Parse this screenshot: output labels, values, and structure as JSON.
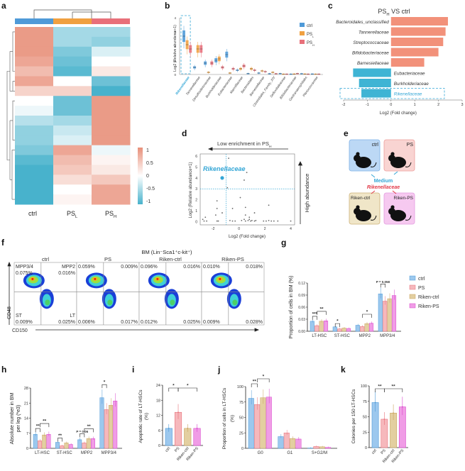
{
  "panel_labels": {
    "a": "a",
    "b": "b",
    "c": "c",
    "d": "d",
    "e": "e",
    "f": "f",
    "g": "g",
    "h": "h",
    "i": "i",
    "j": "j",
    "k": "k"
  },
  "colors": {
    "ctrl": "#4f9ad8",
    "PS_L": "#f0a040",
    "PS_H": "#e8707a",
    "heat_pos": "#e8907a",
    "heat_neg": "#48b2cc",
    "g_ctrl": "#9cc8ee",
    "g_PS": "#f6b8bc",
    "g_riken_ctrl": "#e3cfa0",
    "g_riken_ps": "#f09ce6",
    "highlight": "#33a6d6",
    "c_up": "#f2917a",
    "c_down": "#3fb4d4"
  },
  "chart_data": [
    {
      "id": "a",
      "type": "heatmap",
      "columns": [
        "ctrl",
        "PS_L",
        "PS_H"
      ],
      "column_labels": [
        {
          "main": "ctrl",
          "sub": ""
        },
        {
          "main": "PS",
          "sub": "L"
        },
        {
          "main": "PS",
          "sub": "H"
        }
      ],
      "values": [
        [
          0.9,
          -0.5,
          -0.5
        ],
        [
          0.9,
          -0.5,
          -0.6
        ],
        [
          0.9,
          -0.7,
          -0.2
        ],
        [
          0.8,
          -0.8,
          0.0
        ],
        [
          0.6,
          -0.9,
          0.2
        ],
        [
          0.8,
          0.0,
          -0.8
        ],
        [
          0.4,
          0.4,
          -1.0
        ],
        [
          0.0,
          -0.8,
          0.9
        ],
        [
          -0.1,
          -0.8,
          0.9
        ],
        [
          -0.4,
          -0.5,
          0.9
        ],
        [
          -0.6,
          -0.3,
          0.9
        ],
        [
          -0.6,
          -0.2,
          0.9
        ],
        [
          -0.7,
          0.8,
          -0.1
        ],
        [
          -0.9,
          0.6,
          0.1
        ],
        [
          -1.0,
          0.5,
          0.2
        ],
        [
          -1.0,
          0.3,
          0.5
        ],
        [
          -1.0,
          0.0,
          0.8
        ],
        [
          -1.0,
          0.1,
          0.8
        ]
      ],
      "colorbar": {
        "ticks": [
          "1",
          "0.5",
          "0",
          "-0.5",
          "-1"
        ],
        "range": [
          -1,
          1
        ]
      }
    },
    {
      "id": "b",
      "type": "box",
      "ylabel": "Log2 (Relative abundance+1)",
      "ylim": [
        0,
        4
      ],
      "yticks": [
        "0",
        "1",
        "2",
        "3",
        "4"
      ],
      "legend": [
        {
          "main": "ctrl",
          "sub": ""
        },
        {
          "main": "PS",
          "sub": "L"
        },
        {
          "main": "PS",
          "sub": "H"
        }
      ],
      "legend_placement": "top-right",
      "highlight": "Rikenellaceae",
      "categories": [
        "Rikenellaceae",
        "Tannerellaceae",
        "Desulfovibrionaceae",
        "Burkholderiaceae",
        "Eubacteriaceae",
        "Marinifilaceae",
        "Bacteroidales",
        "Barnesiellaceae",
        "Clostridiales_Family_XIV",
        "Defluviitaleaceae",
        "Bifidobacteriaceae",
        "Gastranaerophilales",
        "Planococcaceae"
      ],
      "medians": {
        "ctrl": [
          2.7,
          0.5,
          0.8,
          1.0,
          1.4,
          0.3,
          0.06,
          0.1,
          0.05,
          0.06,
          0.02,
          0.05,
          0.03
        ],
        "PS_L": [
          2.1,
          1.8,
          0.15,
          1.1,
          0.1,
          0.4,
          0.4,
          0.25,
          0.15,
          0.02,
          0.03,
          0.03,
          0.02
        ],
        "PS_H": [
          1.8,
          1.8,
          0.8,
          0.5,
          0.4,
          0.6,
          0.3,
          0.2,
          0.05,
          0.02,
          0.06,
          0.02,
          0.02
        ]
      }
    },
    {
      "id": "c",
      "type": "bar",
      "orientation": "horizontal",
      "title": {
        "main": "PS",
        "sub": "H",
        "rest": " VS ctrl"
      },
      "xlabel": "Log2 (Fold change)",
      "xlim": [
        -2,
        3
      ],
      "xticks": [
        "-2",
        "-1",
        "0",
        "1",
        "2",
        "3"
      ],
      "categories": [
        "Bacteroidales_unclassified",
        "Tannerellaceae",
        "Streptococcaceae",
        "Bifidobacteriaceae",
        "Barnesiellaceae",
        "Eubacteriaceae",
        "Burkholderiaceae",
        "Rikenellaceae"
      ],
      "values": [
        2.4,
        2.3,
        2.2,
        2.0,
        1.4,
        -1.6,
        -1.35,
        -1.25
      ],
      "highlight": "Rikenellaceae"
    },
    {
      "id": "d",
      "type": "scatter",
      "top_annotation": "Low enrichment in PS",
      "top_annotation_sub": "H",
      "right_annotation": "High abundance",
      "xlabel": "Log2 (Fold change)",
      "ylabel": "Log2 (Relative abundance+1)",
      "xlim": [
        -3,
        4.3
      ],
      "ylim": [
        -0.3,
        6.2
      ],
      "xticks": [
        "-2",
        "0",
        "2",
        "4"
      ],
      "yticks": [
        "0",
        "1",
        "2",
        "3",
        "4",
        "5",
        "6"
      ],
      "thresholds": {
        "x": -1,
        "y": 3
      },
      "highlight_label": "Rikenellaceae",
      "highlight_point": [
        -1.3,
        4.0
      ],
      "points": [
        [
          -0.8,
          5.8
        ],
        [
          0.6,
          4.5
        ],
        [
          0.4,
          3.8
        ],
        [
          -0.9,
          3.1
        ],
        [
          0.1,
          2.2
        ],
        [
          -1.7,
          1.9
        ],
        [
          2.3,
          1.5
        ],
        [
          -1.7,
          1.2
        ],
        [
          -0.5,
          1.2
        ],
        [
          0.5,
          1.3
        ],
        [
          -1.3,
          0.8
        ],
        [
          1.2,
          0.8
        ],
        [
          -1.8,
          0.6
        ],
        [
          0.5,
          0.6
        ],
        [
          -2.6,
          0.4
        ],
        [
          0.8,
          0.4
        ],
        [
          -2.8,
          0.2
        ],
        [
          -2.7,
          0.05
        ],
        [
          -2.5,
          0.05
        ],
        [
          -1.7,
          0.05
        ],
        [
          -1.6,
          0.05
        ],
        [
          -0.7,
          0.1
        ],
        [
          -0.5,
          0.05
        ],
        [
          -0.3,
          0.05
        ],
        [
          0.2,
          0.1
        ],
        [
          0.4,
          0.2
        ],
        [
          0.5,
          0.05
        ],
        [
          0.7,
          0.1
        ],
        [
          0.8,
          0.2
        ],
        [
          0.9,
          0.05
        ],
        [
          1.0,
          0.1
        ],
        [
          1.2,
          0.05
        ],
        [
          1.3,
          0.1
        ],
        [
          1.9,
          0.05
        ],
        [
          2.1,
          0.05
        ],
        [
          2.3,
          0.1
        ],
        [
          2.5,
          0.05
        ],
        [
          2.7,
          0.05
        ],
        [
          3.0,
          0.05
        ],
        [
          4.0,
          0.05
        ]
      ]
    },
    {
      "id": "f",
      "type": "flow-cytometry",
      "title": "BM (Lin⁻Sca1⁺c-kit⁺)",
      "xlabel": "CD150",
      "ylabel": "CD48",
      "panels": [
        {
          "name": "ctrl",
          "q": [
            "0.075%",
            "0.016%",
            "0.009%",
            "0.025%"
          ],
          "qlabels": [
            "MPP3/4",
            "MPP2",
            "ST",
            "LT"
          ]
        },
        {
          "name": "PS",
          "q": [
            "0.059%",
            "0.009%",
            "0.006%",
            "0.017%"
          ]
        },
        {
          "name": "Riken-ctrl",
          "q": [
            "0.096%",
            "0.016%",
            "0.012%",
            "0.025%"
          ]
        },
        {
          "name": "Riken-PS",
          "q": [
            "0.010%",
            "0.018%",
            "0.009%",
            "0.028%"
          ]
        }
      ]
    },
    {
      "id": "g",
      "type": "bar",
      "ylabel": "Proportion of cells in BM (%)",
      "ylim": [
        0,
        0.12
      ],
      "yticks": [
        "0.00",
        "0.03",
        "0.06",
        "0.09",
        "0.12"
      ],
      "categories": [
        "LT-HSC",
        "ST-HSC",
        "MPP2",
        "MPP3/4"
      ],
      "series": [
        {
          "name": "ctrl",
          "values": [
            0.025,
            0.011,
            0.015,
            0.093
          ]
        },
        {
          "name": "PS",
          "values": [
            0.014,
            0.006,
            0.012,
            0.075
          ]
        },
        {
          "name": "Riken-ctrl",
          "values": [
            0.025,
            0.008,
            0.019,
            0.081
          ]
        },
        {
          "name": "Riken-PS",
          "values": [
            0.026,
            0.007,
            0.02,
            0.089
          ]
        }
      ],
      "legend": [
        "ctrl",
        "PS",
        "Riken-ctrl",
        "Riken-PS"
      ],
      "legend_placement": "right",
      "annotations": [
        {
          "cat": 0,
          "from": 0,
          "to": 1,
          "text": "***"
        },
        {
          "cat": 0,
          "from": 1,
          "to": 3,
          "text": "**"
        },
        {
          "cat": 1,
          "from": 0,
          "to": 1,
          "text": "*"
        },
        {
          "cat": 2,
          "from": 1,
          "to": 3,
          "text": "*"
        },
        {
          "cat": 3,
          "from": 0,
          "to": 1,
          "text": "P = 0.058"
        }
      ]
    },
    {
      "id": "h",
      "type": "bar",
      "ylabel": "Absolute number in BM per leg (*e3)",
      "ylim": [
        0,
        28
      ],
      "yticks": [
        "0",
        "7",
        "14",
        "21",
        "28"
      ],
      "categories": [
        "LT-HSC",
        "ST-HSC",
        "MPP2",
        "MPP3/4"
      ],
      "series": [
        {
          "name": "ctrl",
          "values": [
            6.5,
            2.8,
            4.0,
            23.5
          ]
        },
        {
          "name": "PS",
          "values": [
            3.5,
            1.2,
            2.5,
            18.0
          ]
        },
        {
          "name": "Riken-ctrl",
          "values": [
            6.2,
            2.5,
            4.5,
            20.0
          ]
        },
        {
          "name": "Riken-PS",
          "values": [
            6.5,
            1.8,
            4.5,
            22.0
          ]
        }
      ],
      "annotations": [
        {
          "cat": 0,
          "from": 0,
          "to": 1,
          "text": "**"
        },
        {
          "cat": 0,
          "from": 1,
          "to": 3,
          "text": "**"
        },
        {
          "cat": 1,
          "from": 0,
          "to": 1,
          "text": "**"
        },
        {
          "cat": 2,
          "from": 0,
          "to": 1,
          "text": "P = 0.06"
        },
        {
          "cat": 2,
          "from": 1,
          "to": 3,
          "text": "**"
        },
        {
          "cat": 3,
          "from": 0,
          "to": 1,
          "text": "*"
        }
      ]
    },
    {
      "id": "i",
      "type": "bar",
      "ylabel": "Apoptotic rate of LT-HSCs (%)",
      "ylim": [
        0,
        24
      ],
      "yticks": [
        "0",
        "6",
        "12",
        "18",
        "24"
      ],
      "categories": [
        "ctrl",
        "PS",
        "Riken-ctrl",
        "Riken-PS"
      ],
      "values": [
        6.8,
        13.2,
        6.8,
        6.8
      ],
      "annotations": [
        {
          "from": 0,
          "to": 1,
          "text": "*"
        },
        {
          "from": 1,
          "to": 3,
          "text": "*"
        }
      ]
    },
    {
      "id": "j",
      "type": "bar",
      "ylabel": "Proportion of cells in LT-HSCs (%)",
      "ylim": [
        0,
        100
      ],
      "yticks": [
        "0",
        "25",
        "50",
        "75",
        "100"
      ],
      "categories": [
        "G0",
        "G1",
        "S+G2/M"
      ],
      "series": [
        {
          "name": "ctrl",
          "values": [
            81,
            19,
            0.5
          ]
        },
        {
          "name": "PS",
          "values": [
            71,
            25,
            3
          ]
        },
        {
          "name": "Riken-ctrl",
          "values": [
            82,
            16,
            2.5
          ]
        },
        {
          "name": "Riken-PS",
          "values": [
            83,
            15,
            1.5
          ]
        }
      ],
      "annotations": [
        {
          "cat": 0,
          "from": 0,
          "to": 1,
          "text": "**"
        },
        {
          "cat": 0,
          "from": 1,
          "to": 3,
          "text": "*"
        }
      ]
    },
    {
      "id": "k",
      "type": "bar",
      "ylabel": "Colonies per 150 LT-HSCs",
      "ylim": [
        0,
        100
      ],
      "yticks": [
        "0",
        "25",
        "50",
        "75",
        "100"
      ],
      "categories": [
        "ctrl",
        "PS",
        "Riken-ctrl",
        "Riken-PS"
      ],
      "values": [
        73,
        46,
        56,
        66
      ],
      "annotations": [
        {
          "from": 0,
          "to": 1,
          "text": "**"
        },
        {
          "from": 1,
          "to": 3,
          "text": "**"
        }
      ]
    }
  ],
  "panel_e": {
    "boxes": [
      "ctrl",
      "PS",
      "Riken-ctrl",
      "Riken-PS"
    ],
    "medium_label": "Medium",
    "bacteria_label": "Rikenellaceae"
  }
}
